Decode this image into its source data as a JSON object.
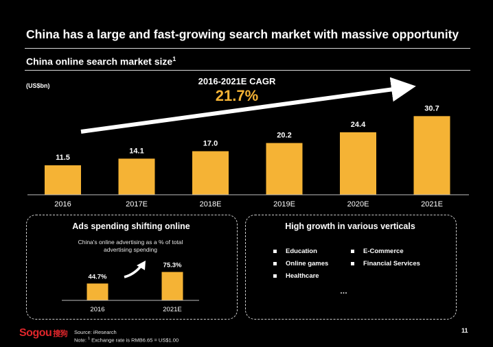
{
  "title": "China has a large and fast-growing search market with massive opportunity",
  "subtitle": "China online search market size",
  "subtitle_sup": "1",
  "unit_label": "(US$bn)",
  "cagr": {
    "label": "2016-2021E CAGR",
    "value": "21.7%"
  },
  "colors": {
    "bar": "#f5b335",
    "accent": "#f5b335",
    "background": "#000000",
    "logo_red": "#e0262b"
  },
  "chart_data": [
    {
      "type": "bar",
      "title": "China online search market size",
      "ylabel": "(US$bn)",
      "categories": [
        "2016",
        "2017E",
        "2018E",
        "2019E",
        "2020E",
        "2021E"
      ],
      "values": [
        11.5,
        14.1,
        17.0,
        20.2,
        24.4,
        30.7
      ],
      "value_labels": [
        "11.5",
        "14.1",
        "17.0",
        "20.2",
        "24.4",
        "30.7"
      ],
      "ylim": [
        0,
        34
      ],
      "grid": false,
      "annotation": "2016-2021E CAGR 21.7%"
    },
    {
      "type": "bar",
      "title": "China's online advertising as a % of total advertising spending",
      "categories": [
        "2016",
        "2021E"
      ],
      "values": [
        44.7,
        75.3
      ],
      "value_labels": [
        "44.7%",
        "75.3%"
      ],
      "ylim": [
        0,
        100
      ],
      "grid": false
    }
  ],
  "ads_box": {
    "title": "Ads spending shifting online",
    "note_line1": "China's online advertising as a % of total",
    "note_line2": "advertising spending"
  },
  "growth_box": {
    "title": "High growth in various verticals",
    "items": [
      "Education",
      "E-Commerce",
      "Online games",
      "Financial Services",
      "Healthcare"
    ],
    "ellipsis": "…"
  },
  "footer": {
    "logo_text": "Sogou",
    "logo_cn": "搜狗",
    "source": "Source: iResearch",
    "note_prefix": "Note: ",
    "note_sup": "1",
    "note_text": " Exchange rate is RMB6.65 = US$1.00",
    "page_number": "11"
  }
}
